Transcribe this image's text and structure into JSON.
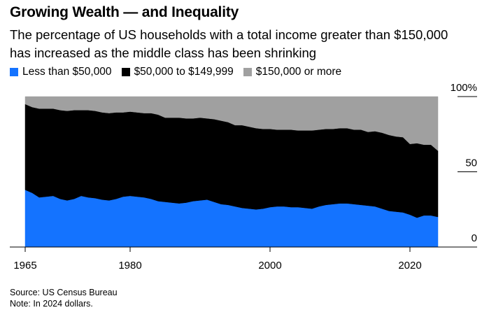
{
  "header": {
    "title": "Growing Wealth — and Inequality",
    "subtitle": "The percentage of US households with a total income greater than $150,000 has increased as the middle class has been shrinking"
  },
  "footer": {
    "source": "Source: US Census Bureau",
    "note": "Note: In 2024 dollars."
  },
  "chart_data": {
    "type": "area",
    "stacked": true,
    "title": "Growing Wealth — and Inequality",
    "subtitle": "The percentage of US households with a total income greater than $150,000 has increased as the middle class has been shrinking",
    "xlabel": "",
    "ylabel": "",
    "x_ticks": [
      1965,
      1980,
      2000,
      2020
    ],
    "y_ticks": [
      0,
      50,
      100
    ],
    "y_tick_labels": [
      "0",
      "50",
      "100%"
    ],
    "xlim": [
      1965,
      2024
    ],
    "ylim": [
      0,
      100
    ],
    "grid": false,
    "legend_position": "top-left",
    "x": [
      1965,
      1966,
      1967,
      1968,
      1969,
      1970,
      1971,
      1972,
      1973,
      1974,
      1975,
      1976,
      1977,
      1978,
      1979,
      1980,
      1981,
      1982,
      1983,
      1984,
      1985,
      1986,
      1987,
      1988,
      1989,
      1990,
      1991,
      1992,
      1993,
      1994,
      1995,
      1996,
      1997,
      1998,
      1999,
      2000,
      2001,
      2002,
      2003,
      2004,
      2005,
      2006,
      2007,
      2008,
      2009,
      2010,
      2011,
      2012,
      2013,
      2014,
      2015,
      2016,
      2017,
      2018,
      2019,
      2020,
      2021,
      2022,
      2023,
      2024
    ],
    "series": [
      {
        "name": "Less than $50,000",
        "color": "#1473FF",
        "values": [
          38,
          36,
          33,
          33.5,
          34,
          32,
          31,
          32,
          34,
          33,
          32.5,
          31.5,
          31,
          32,
          33.5,
          34,
          33.5,
          33,
          32,
          30.5,
          30,
          29.5,
          29,
          29.5,
          30.5,
          31,
          31.5,
          30,
          28.5,
          28,
          27,
          26,
          25.5,
          25,
          25.5,
          26.5,
          27,
          27,
          26.5,
          26.5,
          26,
          25.5,
          27,
          28,
          28.5,
          29,
          29,
          28.5,
          28,
          27.5,
          27,
          25.5,
          24,
          23.5,
          23,
          21.5,
          19.5,
          21,
          21,
          20
        ]
      },
      {
        "name": "$50,000 to $149,999",
        "color": "#000000",
        "values": [
          57,
          57,
          59,
          58.5,
          58,
          59,
          59.5,
          59,
          57,
          58,
          58,
          58,
          58,
          57.5,
          56,
          56,
          56,
          56,
          57,
          57.5,
          56,
          56.5,
          57,
          56,
          55,
          55,
          54,
          55,
          55.5,
          55,
          54,
          55,
          54.5,
          54,
          53,
          52,
          51,
          51,
          51.5,
          51,
          51.5,
          52,
          51,
          50.5,
          50,
          50,
          50,
          49.5,
          50,
          49,
          50,
          50.5,
          50.5,
          50,
          50,
          47,
          49.5,
          47,
          47,
          44
        ]
      },
      {
        "name": "$150,000 or more",
        "color": "#A0A0A0",
        "values": [
          5,
          7,
          8,
          8,
          8,
          9,
          9.5,
          9,
          9,
          9,
          9.5,
          10.5,
          11,
          10.5,
          10.5,
          10,
          10.5,
          11,
          11,
          12,
          14,
          14,
          14,
          14.5,
          14.5,
          14,
          14.5,
          15,
          16,
          17,
          19,
          19,
          20,
          21,
          21.5,
          21.5,
          22,
          22,
          22,
          22.5,
          22.5,
          22.5,
          22,
          21.5,
          21.5,
          21,
          21,
          22,
          22,
          23.5,
          23,
          24,
          25.5,
          26.5,
          27,
          31.5,
          31,
          32,
          32,
          36
        ]
      }
    ]
  }
}
